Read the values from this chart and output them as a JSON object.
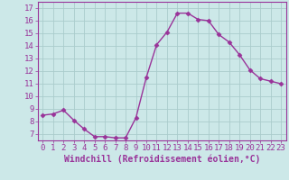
{
  "x": [
    0,
    1,
    2,
    3,
    4,
    5,
    6,
    7,
    8,
    9,
    10,
    11,
    12,
    13,
    14,
    15,
    16,
    17,
    18,
    19,
    20,
    21,
    22,
    23
  ],
  "y": [
    8.5,
    8.6,
    8.9,
    8.1,
    7.4,
    6.8,
    6.8,
    6.7,
    6.7,
    8.3,
    11.5,
    14.1,
    15.1,
    16.6,
    16.6,
    16.1,
    16.0,
    14.9,
    14.3,
    13.3,
    12.1,
    11.4,
    11.2,
    11.0
  ],
  "line_color": "#993399",
  "marker": "D",
  "marker_size": 2.5,
  "line_width": 1.0,
  "xlabel": "Windchill (Refroidissement éolien,°C)",
  "xlabel_fontsize": 7,
  "ylabel_ticks": [
    7,
    8,
    9,
    10,
    11,
    12,
    13,
    14,
    15,
    16,
    17
  ],
  "xlim": [
    -0.5,
    23.5
  ],
  "ylim": [
    6.5,
    17.5
  ],
  "bg_color": "#cce8e8",
  "grid_color": "#aacccc",
  "tick_fontsize": 6.5,
  "tick_color": "#993399",
  "spine_color": "#993399"
}
